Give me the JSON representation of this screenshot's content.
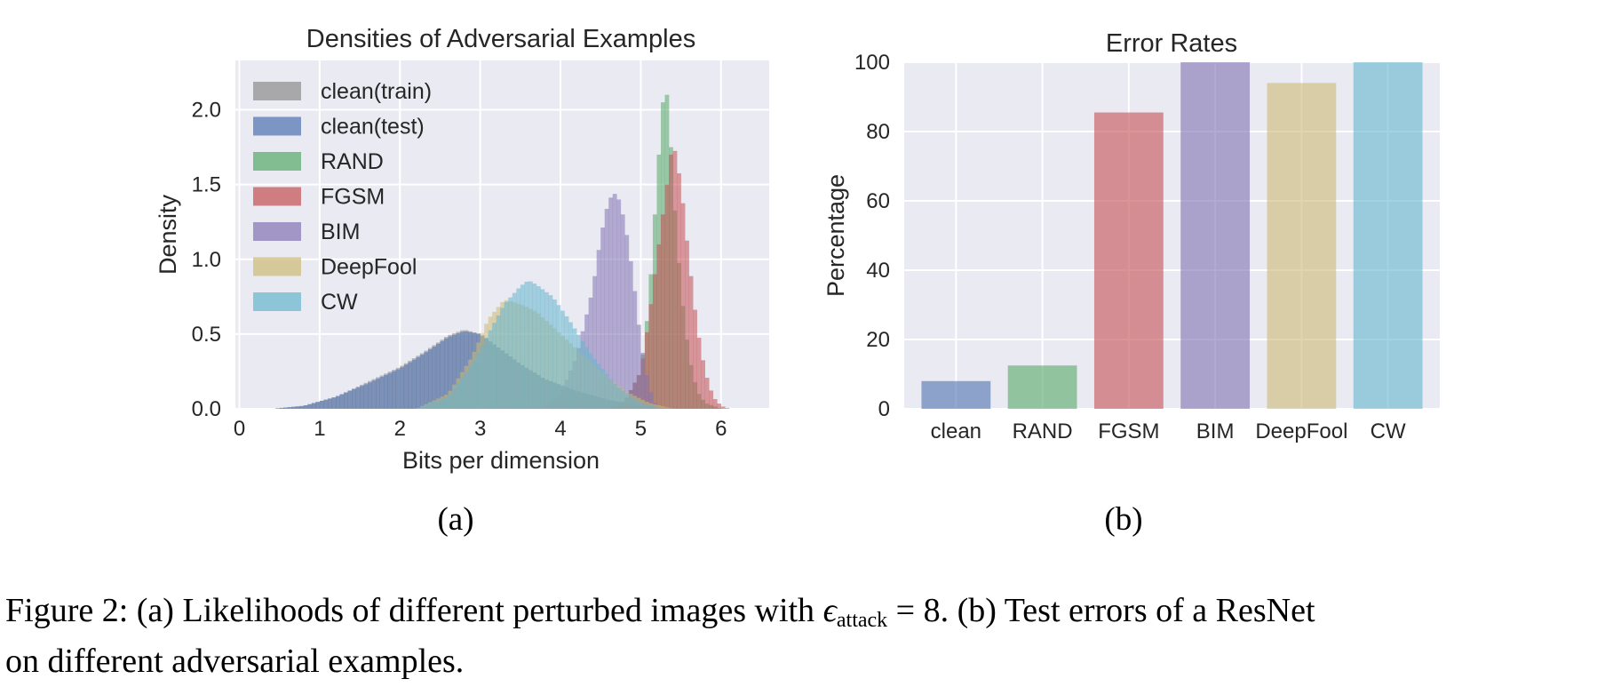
{
  "chart_data": [
    {
      "type": "histogram",
      "title": "Densities of Adversarial Examples",
      "xlabel": "Bits per dimension",
      "ylabel": "Density",
      "xlim": [
        -0.05,
        6.6
      ],
      "ylim": [
        0,
        2.33
      ],
      "xticks": [
        0,
        1,
        2,
        3,
        4,
        5,
        6
      ],
      "yticks": [
        0.0,
        0.5,
        1.0,
        1.5,
        2.0
      ],
      "ytick_labels": [
        "0.0",
        "0.5",
        "1.0",
        "1.5",
        "2.0"
      ],
      "grid": true,
      "legend": "top-left",
      "series": [
        {
          "name": "clean(train)",
          "color": "#8c8c8c",
          "x": [
            0.4,
            0.8,
            1.2,
            1.6,
            2.0,
            2.3,
            2.6,
            2.8,
            3.0,
            3.2,
            3.5,
            3.8,
            4.2,
            4.6,
            5.0,
            5.4
          ],
          "y": [
            0.0,
            0.02,
            0.08,
            0.18,
            0.28,
            0.38,
            0.49,
            0.53,
            0.5,
            0.42,
            0.3,
            0.2,
            0.12,
            0.06,
            0.02,
            0.0
          ]
        },
        {
          "name": "clean(test)",
          "color": "#4c72b0",
          "x": [
            0.4,
            0.8,
            1.2,
            1.6,
            2.0,
            2.3,
            2.6,
            2.8,
            3.0,
            3.2,
            3.5,
            3.8,
            4.2,
            4.6,
            5.0,
            5.4
          ],
          "y": [
            0.0,
            0.02,
            0.08,
            0.17,
            0.27,
            0.37,
            0.48,
            0.52,
            0.5,
            0.42,
            0.3,
            0.2,
            0.12,
            0.06,
            0.02,
            0.0
          ]
        },
        {
          "name": "RAND",
          "color": "#55a868",
          "x": [
            4.6,
            4.8,
            5.0,
            5.1,
            5.2,
            5.25,
            5.3,
            5.35,
            5.4,
            5.5,
            5.6,
            5.7,
            5.8,
            6.0
          ],
          "y": [
            0.0,
            0.05,
            0.25,
            0.7,
            1.5,
            1.9,
            2.2,
            2.0,
            1.5,
            0.8,
            0.35,
            0.12,
            0.04,
            0.0
          ]
        },
        {
          "name": "FGSM",
          "color": "#c44e52",
          "x": [
            4.6,
            4.8,
            5.0,
            5.1,
            5.2,
            5.3,
            5.4,
            5.5,
            5.6,
            5.7,
            5.8,
            5.9,
            6.0,
            6.1
          ],
          "y": [
            0.0,
            0.05,
            0.25,
            0.6,
            1.0,
            1.4,
            1.8,
            1.5,
            1.0,
            0.55,
            0.25,
            0.08,
            0.02,
            0.0
          ]
        },
        {
          "name": "BIM",
          "color": "#8172b2",
          "x": [
            3.8,
            4.0,
            4.2,
            4.4,
            4.5,
            4.6,
            4.7,
            4.8,
            4.9,
            5.0,
            5.1,
            5.2
          ],
          "y": [
            0.0,
            0.1,
            0.35,
            0.8,
            1.15,
            1.4,
            1.45,
            1.25,
            0.9,
            0.45,
            0.15,
            0.0
          ]
        },
        {
          "name": "DeepFool",
          "color": "#ccb974",
          "x": [
            2.2,
            2.6,
            2.9,
            3.1,
            3.3,
            3.5,
            3.7,
            3.9,
            4.2,
            4.5,
            4.8,
            5.1,
            5.4
          ],
          "y": [
            0.0,
            0.1,
            0.35,
            0.6,
            0.73,
            0.7,
            0.65,
            0.55,
            0.4,
            0.25,
            0.12,
            0.04,
            0.0
          ]
        },
        {
          "name": "CW",
          "color": "#64b5cd",
          "x": [
            2.2,
            2.6,
            2.9,
            3.1,
            3.3,
            3.5,
            3.6,
            3.7,
            3.9,
            4.1,
            4.4,
            4.7,
            5.0,
            5.3
          ],
          "y": [
            0.0,
            0.08,
            0.3,
            0.5,
            0.7,
            0.82,
            0.86,
            0.83,
            0.75,
            0.6,
            0.35,
            0.15,
            0.04,
            0.0
          ]
        }
      ]
    },
    {
      "type": "bar",
      "title": "Error Rates",
      "xlabel": "",
      "ylabel": "Percentage",
      "ylim": [
        0,
        100
      ],
      "yticks": [
        0,
        20,
        40,
        60,
        80,
        100
      ],
      "grid": true,
      "categories": [
        "clean",
        "RAND",
        "FGSM",
        "BIM",
        "DeepFool",
        "CW"
      ],
      "values": [
        8,
        12.5,
        85.5,
        100,
        94,
        100
      ],
      "colors": [
        "#4c72b0",
        "#55a868",
        "#c44e52",
        "#8172b2",
        "#ccb974",
        "#64b5cd"
      ]
    }
  ],
  "panel_labels": [
    "(a)",
    "(b)"
  ],
  "caption": {
    "prefix": "Figure 2: (a) Likelihoods of different perturbed images with ",
    "eps_symbol": "ϵ",
    "eps_sub": "attack",
    "eps_rest": " = 8. (b) Test errors of a ResNet",
    "line2": "on different adversarial examples."
  }
}
